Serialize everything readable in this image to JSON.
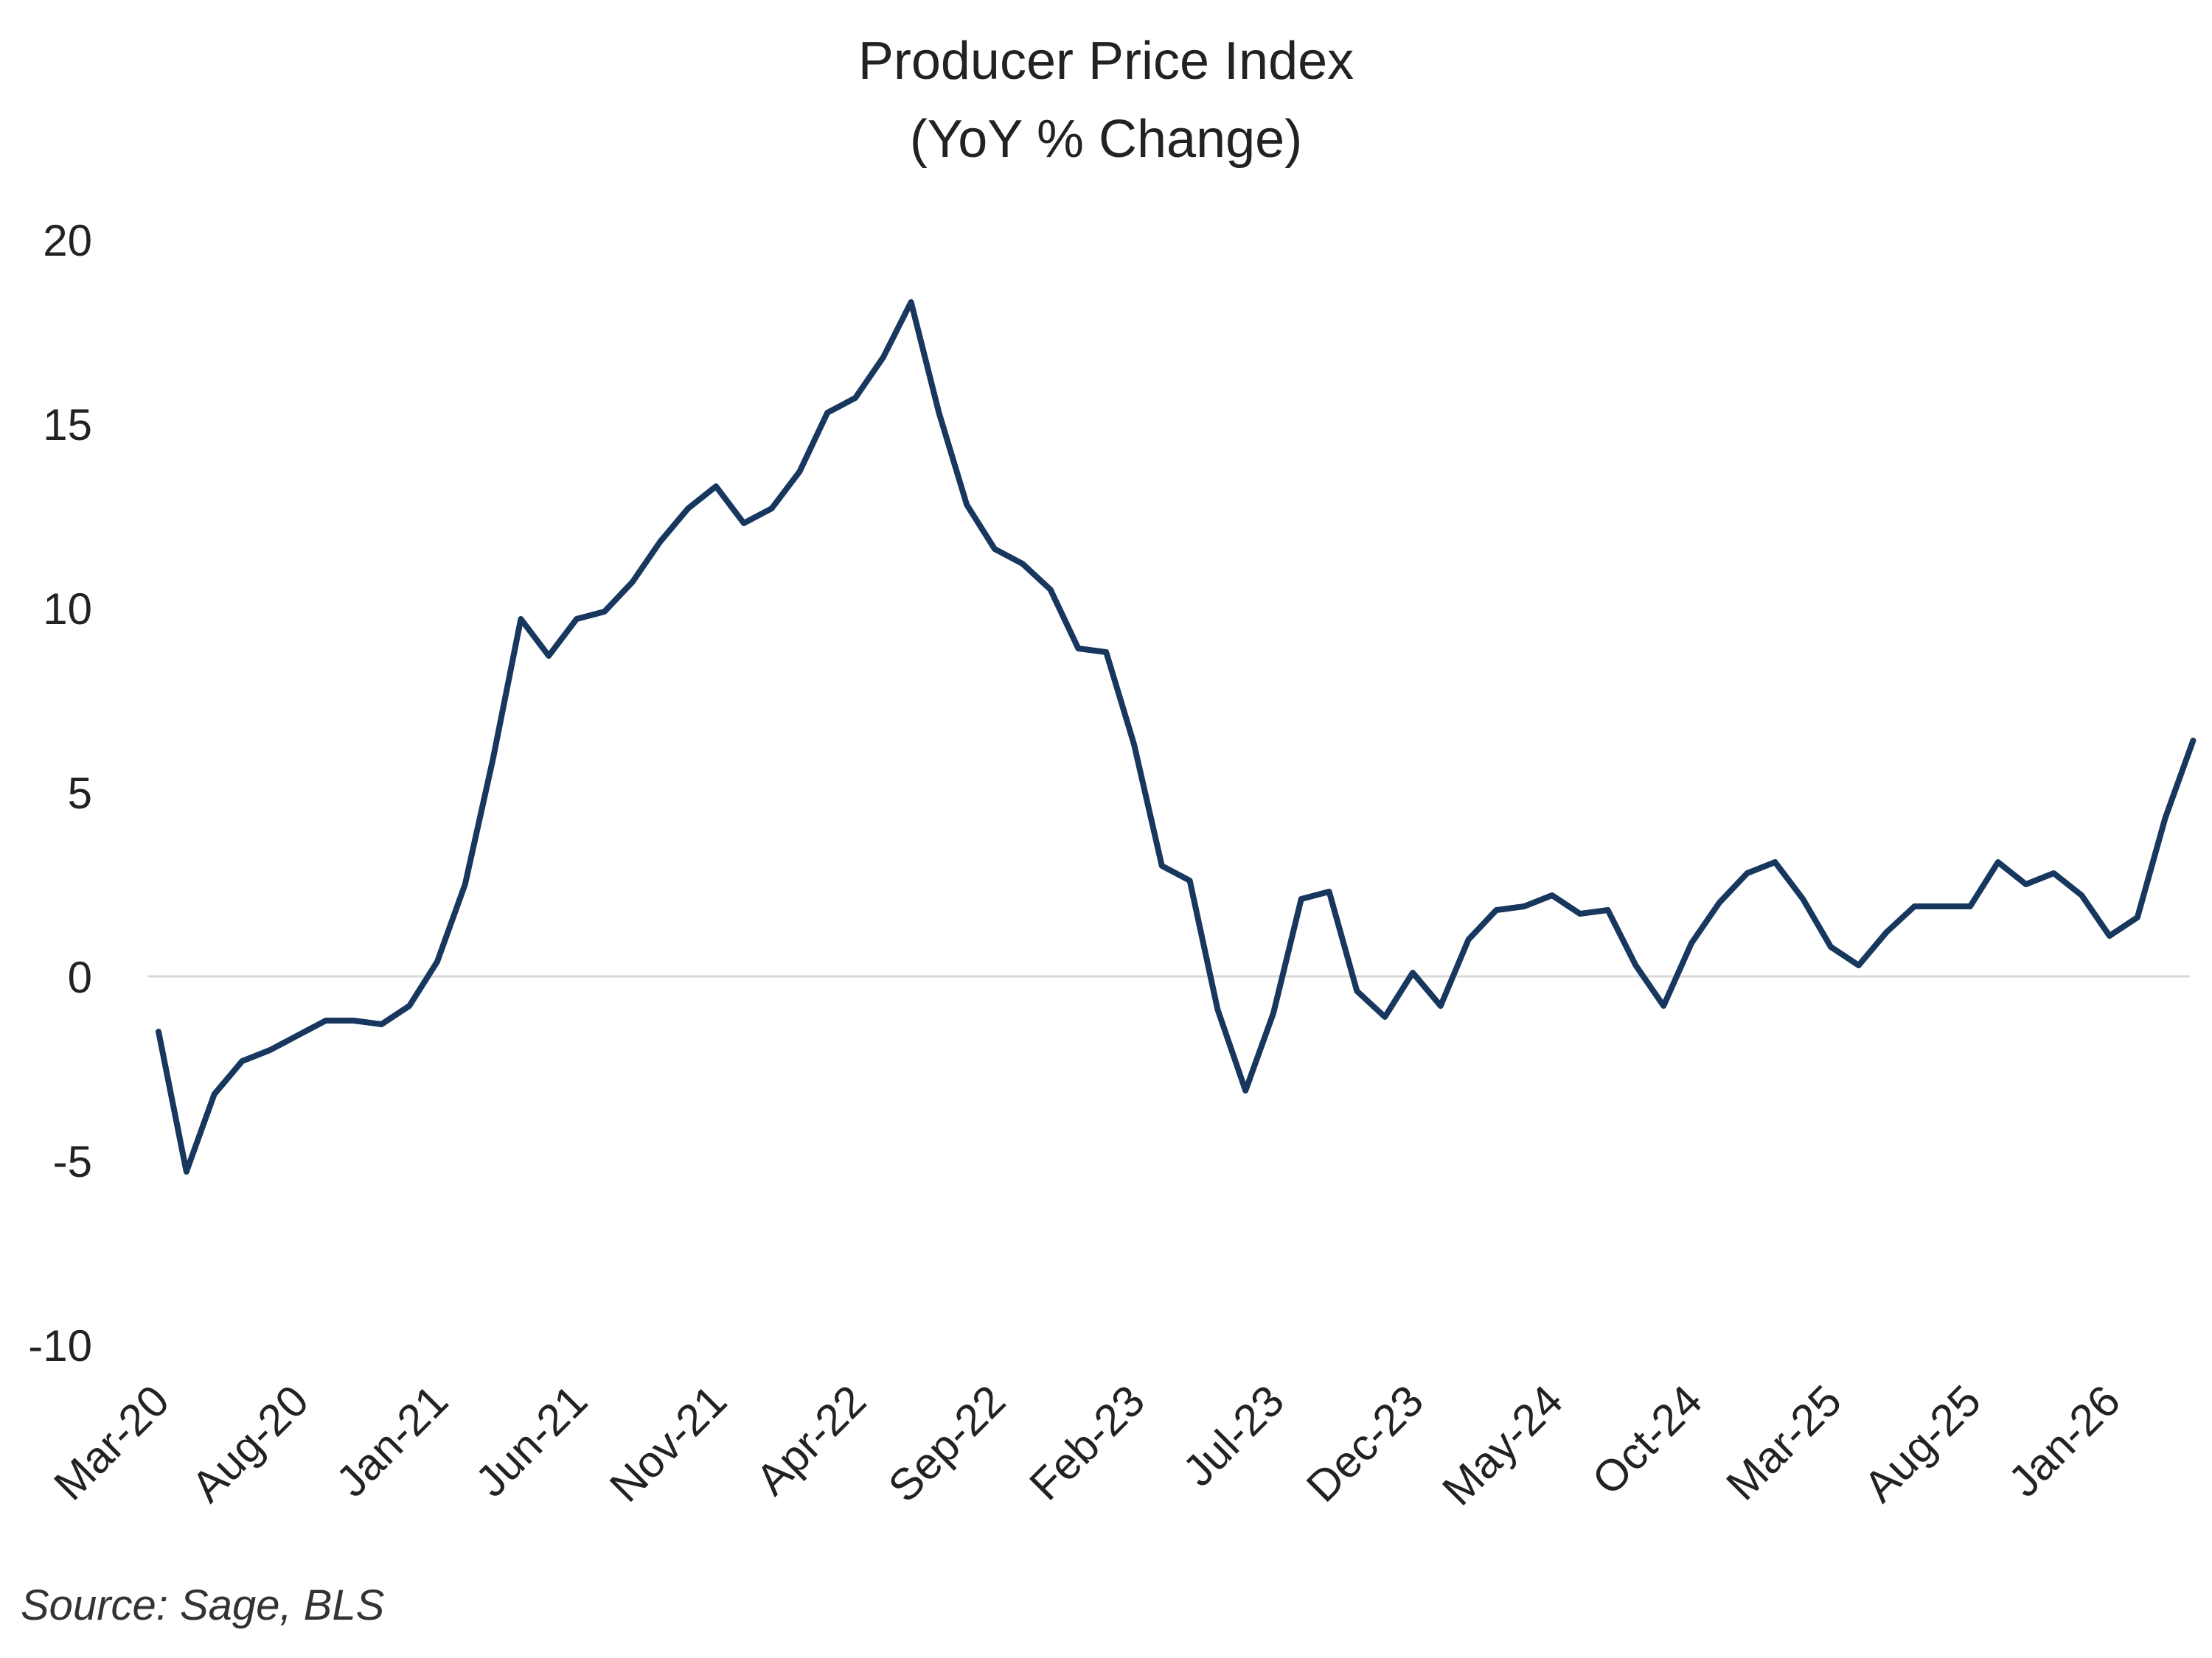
{
  "chart_data": {
    "type": "line",
    "title": "Producer Price Index",
    "subtitle": "(YoY % Change)",
    "xlabel": "",
    "ylabel": "",
    "ylim": [
      -10,
      20
    ],
    "yticks": [
      20,
      15,
      10,
      5,
      0,
      -5,
      -10
    ],
    "x_tick_labels": [
      "Mar-20",
      "Aug-20",
      "Jan-21",
      "Jun-21",
      "Nov-21",
      "Apr-22",
      "Sep-22",
      "Feb-23",
      "Jul-23",
      "Dec-23",
      "May-24",
      "Oct-24",
      "Mar-25",
      "Aug-25",
      "Jan-26"
    ],
    "x_tick_every": 5,
    "grid": false,
    "zero_line": true,
    "line_color": "#17375e",
    "series": [
      {
        "values": [
          -1.5,
          -5.3,
          -3.2,
          -2.3,
          -2.0,
          -1.6,
          -1.2,
          -1.2,
          -1.3,
          -0.8,
          0.4,
          2.5,
          5.9,
          9.7,
          8.7,
          9.7,
          9.9,
          10.7,
          11.8,
          12.7,
          13.3,
          12.3,
          12.7,
          13.7,
          15.3,
          15.7,
          16.8,
          18.3,
          15.3,
          12.8,
          11.6,
          11.2,
          10.5,
          8.9,
          8.8,
          6.3,
          3.0,
          2.6,
          -0.9,
          -3.1,
          -1.0,
          2.1,
          2.3,
          -0.4,
          -1.1,
          0.1,
          -0.8,
          1.0,
          1.8,
          1.9,
          2.2,
          1.7,
          1.8,
          0.3,
          -0.8,
          0.9,
          2.0,
          2.8,
          3.1,
          2.1,
          0.8,
          0.3,
          1.2,
          1.9,
          1.9,
          1.9,
          3.1,
          2.5,
          2.8,
          2.2,
          1.1,
          1.6,
          4.3,
          6.4
        ]
      }
    ]
  },
  "source": "Source: Sage, BLS"
}
